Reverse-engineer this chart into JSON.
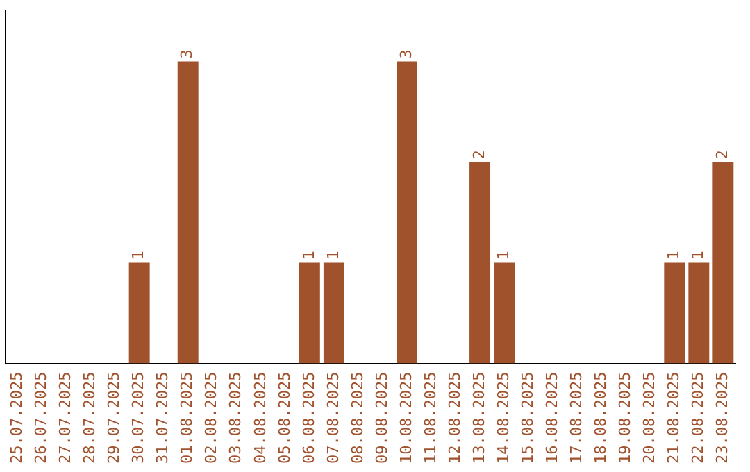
{
  "chart_data": {
    "type": "bar",
    "categories": [
      "25.07.2025",
      "26.07.2025",
      "27.07.2025",
      "28.07.2025",
      "29.07.2025",
      "30.07.2025",
      "31.07.2025",
      "01.08.2025",
      "02.08.2025",
      "03.08.2025",
      "04.08.2025",
      "05.08.2025",
      "06.08.2025",
      "07.08.2025",
      "08.08.2025",
      "09.08.2025",
      "10.08.2025",
      "11.08.2025",
      "12.08.2025",
      "13.08.2025",
      "14.08.2025",
      "15.08.2025",
      "16.08.2025",
      "17.08.2025",
      "18.08.2025",
      "19.08.2025",
      "20.08.2025",
      "21.08.2025",
      "22.08.2025",
      "23.08.2025"
    ],
    "values": [
      0,
      0,
      0,
      0,
      0,
      1,
      0,
      3,
      0,
      0,
      0,
      0,
      1,
      1,
      0,
      0,
      3,
      0,
      0,
      2,
      1,
      0,
      0,
      0,
      0,
      0,
      0,
      1,
      1,
      2
    ],
    "value_labels": [
      null,
      null,
      null,
      null,
      null,
      "1",
      null,
      "3",
      null,
      null,
      null,
      null,
      "1",
      "1",
      null,
      null,
      "3",
      null,
      null,
      "2",
      "1",
      null,
      null,
      null,
      null,
      null,
      null,
      "1",
      "1",
      "2"
    ],
    "color": "#a0522d",
    "tick_labels": "x",
    "grid": false,
    "legend": false
  }
}
